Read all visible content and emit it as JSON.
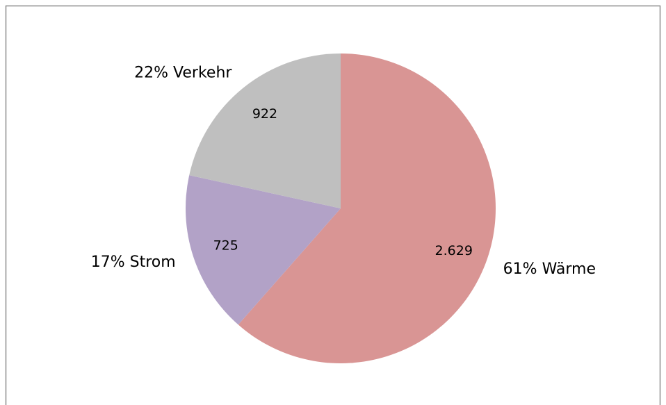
{
  "chart_data": {
    "type": "pie",
    "categories": [
      "61% Wärme",
      "17% Strom",
      "22% Verkehr"
    ],
    "values": [
      2629,
      725,
      922
    ],
    "value_labels": [
      "2.629",
      "725",
      "922"
    ],
    "colors": [
      "#d99594",
      "#b2a2c7",
      "#bfbfbf"
    ]
  }
}
